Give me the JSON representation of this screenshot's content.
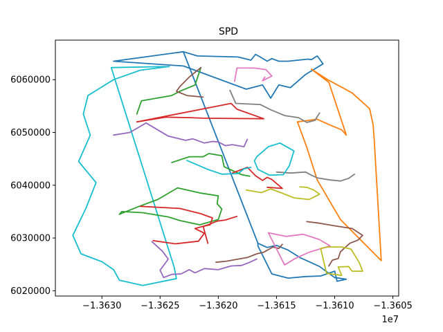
{
  "chart_data": {
    "type": "line",
    "title": "SPD",
    "xlabel": "",
    "ylabel": "",
    "x_offset_label": "1e7",
    "xlim": [
      -13634000,
      -13604500
    ],
    "ylim": [
      6019000,
      6067500
    ],
    "x_ticks": [
      -13630000,
      -13625000,
      -13620000,
      -13615000,
      -13610000,
      -13605000
    ],
    "x_tick_labels": [
      "−1.3630",
      "−1.3625",
      "−1.3620",
      "−1.3615",
      "−1.3610",
      "−1.3605"
    ],
    "y_ticks": [
      6020000,
      6030000,
      6040000,
      6050000,
      6060000
    ],
    "y_tick_labels": [
      "6020000",
      "6030000",
      "6040000",
      "6050000",
      "6060000"
    ],
    "grid": false,
    "series": [
      {
        "color": "#17becf",
        "x": [
          -13624200,
          -13626700,
          -13629000,
          -13631200,
          -13631600,
          -13631000,
          -13632000,
          -13630500,
          -13631400,
          -13632500,
          -13631800,
          -13630000,
          -13629000,
          -13628500,
          -13626500,
          -13623600,
          -13623800,
          -13629200,
          -13624200
        ],
        "y": [
          6062500,
          6061800,
          6060000,
          6057000,
          6053500,
          6049500,
          6044500,
          6040500,
          6035500,
          6030500,
          6027000,
          6025500,
          6024000,
          6022000,
          6021000,
          6022300,
          6024500,
          6062300,
          6062500
        ]
      },
      {
        "color": "#1f77b4",
        "x": [
          -13629000,
          -13623000,
          -13621800,
          -13618300,
          -13617200,
          -13616800,
          -13616400,
          -13615800,
          -13615400,
          -13614800,
          -13614000,
          -13612300,
          -13612000,
          -13611500,
          -13611000,
          -13612500,
          -13613800,
          -13614800,
          -13615500,
          -13616200,
          -13617600,
          -13623000,
          -13629000
        ],
        "y": [
          6063500,
          6065300,
          6064500,
          6064300,
          6063700,
          6064800,
          6064300,
          6063500,
          6064000,
          6063500,
          6063500,
          6063900,
          6063800,
          6064500,
          6063000,
          6061000,
          6058500,
          6059000,
          6056500,
          6059000,
          6058200,
          6062600,
          6063500
        ]
      },
      {
        "color": "#1f77b4",
        "x": [
          -13623000,
          -13616600,
          -13615800,
          -13615000,
          -13614000,
          -13613000,
          -13611300,
          -13610000,
          -13609000,
          -13609800,
          -13610000,
          -13611200,
          -13612500,
          -13614000,
          -13615400,
          -13616600,
          -13616600
        ],
        "y": [
          6065300,
          6029000,
          6028200,
          6028600,
          6027700,
          6026300,
          6024600,
          6022500,
          6022200,
          6021800,
          6023700,
          6022800,
          6022700,
          6022400,
          6023200,
          6028500,
          6029000
        ]
      },
      {
        "color": "#ff7f0e",
        "x": [
          -13612000,
          -13610600,
          -13608500,
          -13607000,
          -13606700,
          -13606600,
          -13606000,
          -13609500,
          -13611500,
          -13612400,
          -13613200,
          -13611500,
          -13610500,
          -13609400,
          -13609000,
          -13610500,
          -13612000
        ],
        "y": [
          6062000,
          6060000,
          6057500,
          6054500,
          6051500,
          6048500,
          6025700,
          6033500,
          6041000,
          6047200,
          6052000,
          6052500,
          6051500,
          6050500,
          6049500,
          6059500,
          6062000
        ]
      },
      {
        "color": "#2ca02c",
        "x": [
          -13628500,
          -13626800,
          -13625200,
          -13623500,
          -13621500,
          -13620000,
          -13620100,
          -13619700,
          -13620000,
          -13621600,
          -13623300,
          -13624300,
          -13626500,
          -13628300,
          -13628500
        ],
        "y": [
          6034500,
          6036000,
          6037300,
          6039500,
          6038500,
          6038000,
          6036500,
          6035500,
          6033500,
          6032500,
          6033300,
          6034000,
          6034800,
          6035000,
          6034500
        ]
      },
      {
        "color": "#2ca02c",
        "x": [
          -13624000,
          -13622500,
          -13621300,
          -13620800,
          -13619700,
          -13619500,
          -13619000,
          -13618000,
          -13617300
        ],
        "y": [
          6044300,
          6045400,
          6045400,
          6046000,
          6045600,
          6043500,
          6043000,
          6042000,
          6041700
        ]
      },
      {
        "color": "#2ca02c",
        "x": [
          -13627000,
          -13626600,
          -13624000,
          -13623300,
          -13622000,
          -13621500
        ],
        "y": [
          6053500,
          6056000,
          6057000,
          6057800,
          6059000,
          6062300
        ]
      },
      {
        "color": "#d62728",
        "x": [
          -13627000,
          -13618900,
          -13618400,
          -13616100,
          -13621300,
          -13622400,
          -13624500,
          -13627000
        ],
        "y": [
          6052000,
          6055500,
          6054400,
          6052600,
          6052700,
          6052800,
          6052900,
          6052000
        ]
      },
      {
        "color": "#d62728",
        "x": [
          -13626700,
          -13623300,
          -13621500,
          -13620500,
          -13620700,
          -13621300,
          -13620900
        ],
        "y": [
          6036000,
          6035600,
          6034600,
          6033800,
          6032500,
          6032200,
          6029000
        ]
      },
      {
        "color": "#d62728",
        "x": [
          -13625600,
          -13623700,
          -13621700,
          -13621200,
          -13622000,
          -13621000,
          -13620100,
          -13619400,
          -13618400
        ],
        "y": [
          6029500,
          6028900,
          6029400,
          6030900,
          6031800,
          6032400,
          6033200,
          6033400,
          6034100
        ]
      },
      {
        "color": "#d62728",
        "x": [
          -13618800,
          -13617500,
          -13616800,
          -13616200,
          -13615800,
          -13615400,
          -13614500,
          -13615800
        ],
        "y": [
          6042300,
          6043400,
          6041800,
          6040900,
          6041500,
          6041100,
          6039400,
          6039600
        ]
      },
      {
        "color": "#9467bd",
        "x": [
          -13629000,
          -13627600,
          -13626200,
          -13624300,
          -13622800,
          -13622200,
          -13621200,
          -13620500,
          -13620000,
          -13619400,
          -13618800,
          -13617800,
          -13617500
        ],
        "y": [
          6049500,
          6050000,
          6051800,
          6049300,
          6048500,
          6048800,
          6048000,
          6048300,
          6048200,
          6047500,
          6047700,
          6047300,
          6048700
        ]
      },
      {
        "color": "#9467bd",
        "x": [
          -13625700,
          -13624800,
          -13624300,
          -13625000,
          -13624700,
          -13624000,
          -13623200,
          -13622500,
          -13622000,
          -13621200,
          -13620000,
          -13618900,
          -13618000,
          -13617400,
          -13616700
        ],
        "y": [
          6029300,
          6027500,
          6026000,
          6023900,
          6022500,
          6023100,
          6023200,
          6024000,
          6023400,
          6024200,
          6024000,
          6024700,
          6024800,
          6025300,
          6026000
        ]
      },
      {
        "color": "#8c564b",
        "x": [
          -13621500,
          -13622500,
          -13623300,
          -13623600,
          -13622700,
          -13621300
        ],
        "y": [
          6062300,
          6060500,
          6058700,
          6057800,
          6057000,
          6056700
        ]
      },
      {
        "color": "#8c564b",
        "x": [
          -13612400,
          -13611300,
          -13610000,
          -13608500,
          -13607600,
          -13608000,
          -13608700,
          -13609500,
          -13609700,
          -13610200,
          -13610500
        ],
        "y": [
          6033100,
          6032800,
          6032300,
          6031800,
          6030500,
          6029600,
          6029000,
          6027400,
          6026100,
          6025800,
          6024700
        ]
      },
      {
        "color": "#8c564b",
        "x": [
          -13620200,
          -13619300,
          -13617500,
          -13616700,
          -13616100,
          -13615300,
          -13614800,
          -13614500
        ],
        "y": [
          6025400,
          6025600,
          6026300,
          6027000,
          6027300,
          6028300,
          6028000,
          6028800
        ]
      },
      {
        "color": "#e377c2",
        "x": [
          -13618600,
          -13618400,
          -13616900,
          -13615900,
          -13615400,
          -13616200,
          -13616000
        ],
        "y": [
          6059700,
          6062200,
          6062200,
          6061900,
          6060700,
          6059800,
          6060500
        ]
      },
      {
        "color": "#e377c2",
        "x": [
          -13615700,
          -13614200,
          -13612700,
          -13611300,
          -13610400,
          -13612200,
          -13613400,
          -13614300,
          -13615700
        ],
        "y": [
          6031000,
          6030300,
          6030700,
          6029700,
          6028500,
          6027300,
          6026100,
          6024900,
          6031000
        ]
      },
      {
        "color": "#7f7f7f",
        "x": [
          -13619000,
          -13618500,
          -13616400,
          -13615500,
          -13614300,
          -13613100,
          -13612400,
          -13611700,
          -13611300
        ],
        "y": [
          6058000,
          6055500,
          6055300,
          6054300,
          6053200,
          6052800,
          6051900,
          6052300,
          6053700
        ]
      },
      {
        "color": "#7f7f7f",
        "x": [
          -13615000,
          -13613800,
          -13612500,
          -13612000,
          -13611500,
          -13610400,
          -13609500,
          -13608800,
          -13608300
        ],
        "y": [
          6042500,
          6042300,
          6042500,
          6041900,
          6041400,
          6041000,
          6040800,
          6041300,
          6042100
        ]
      },
      {
        "color": "#bcbd22",
        "x": [
          -13617600,
          -13616300,
          -13615500,
          -13614400,
          -13613500,
          -13612200,
          -13611300,
          -13611800,
          -13612400,
          -13613000
        ],
        "y": [
          6039100,
          6038600,
          6039300,
          6038400,
          6037600,
          6037300,
          6038300,
          6039100,
          6039600,
          6039700
        ]
      },
      {
        "color": "#bcbd22",
        "x": [
          -13611200,
          -13610600,
          -13609400,
          -13608600,
          -13607900,
          -13607600,
          -13608500,
          -13608800,
          -13609700,
          -13609400,
          -13610700,
          -13611200
        ],
        "y": [
          6028000,
          6028300,
          6028300,
          6027900,
          6025400,
          6023700,
          6023700,
          6024600,
          6024500,
          6022900,
          6023300,
          6028000
        ]
      },
      {
        "color": "#17becf",
        "x": [
          -13616700,
          -13615700,
          -13614700,
          -13613500,
          -13613900,
          -13614400,
          -13615600,
          -13616600,
          -13616900,
          -13616700
        ],
        "y": [
          6045400,
          6047300,
          6048000,
          6046500,
          6043700,
          6042000,
          6041900,
          6043000,
          6044600,
          6045400
        ]
      },
      {
        "color": "#17becf",
        "x": [
          -13622700,
          -13620900,
          -13619700,
          -13618300,
          -13617800,
          -13617200
        ],
        "y": [
          6044700,
          6043000,
          6042100,
          6042200,
          6043100,
          6043400
        ]
      }
    ]
  }
}
